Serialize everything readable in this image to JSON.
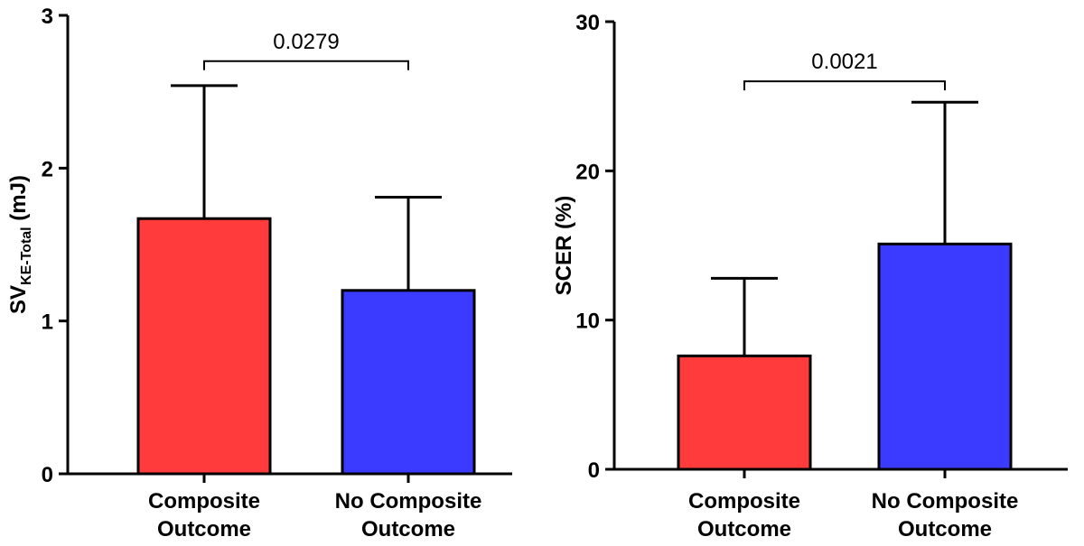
{
  "chart_data": [
    {
      "type": "bar",
      "categories": [
        [
          "Composite",
          "Outcome"
        ],
        [
          "No Composite",
          "Outcome"
        ]
      ],
      "values": [
        1.67,
        1.2
      ],
      "errors": [
        0.87,
        0.61
      ],
      "colors": [
        "#ff3b3b",
        "#3b3bff"
      ],
      "ylabel": "SV",
      "ylabel_subscript": "KE-Total",
      "ylabel_unit": " (mJ)",
      "ylim": [
        0,
        3
      ],
      "yticks": [
        "0",
        "1",
        "2",
        "3"
      ],
      "ytick_values": [
        0,
        1,
        2,
        3
      ],
      "grid": false,
      "comparison": {
        "between": [
          0,
          1
        ],
        "label": "0.0279",
        "level": 2.7
      }
    },
    {
      "type": "bar",
      "categories": [
        [
          "Composite",
          "Outcome"
        ],
        [
          "No Composite",
          "Outcome"
        ]
      ],
      "values": [
        7.6,
        15.1
      ],
      "errors": [
        5.2,
        9.5
      ],
      "colors": [
        "#ff3b3b",
        "#3b3bff"
      ],
      "ylabel": "SCER (%)",
      "ylim": [
        0,
        30
      ],
      "yticks": [
        "0",
        "10",
        "20",
        "30"
      ],
      "ytick_values": [
        0,
        10,
        20,
        30
      ],
      "grid": false,
      "comparison": {
        "between": [
          0,
          1
        ],
        "label": "0.0021",
        "level": 26
      }
    }
  ]
}
